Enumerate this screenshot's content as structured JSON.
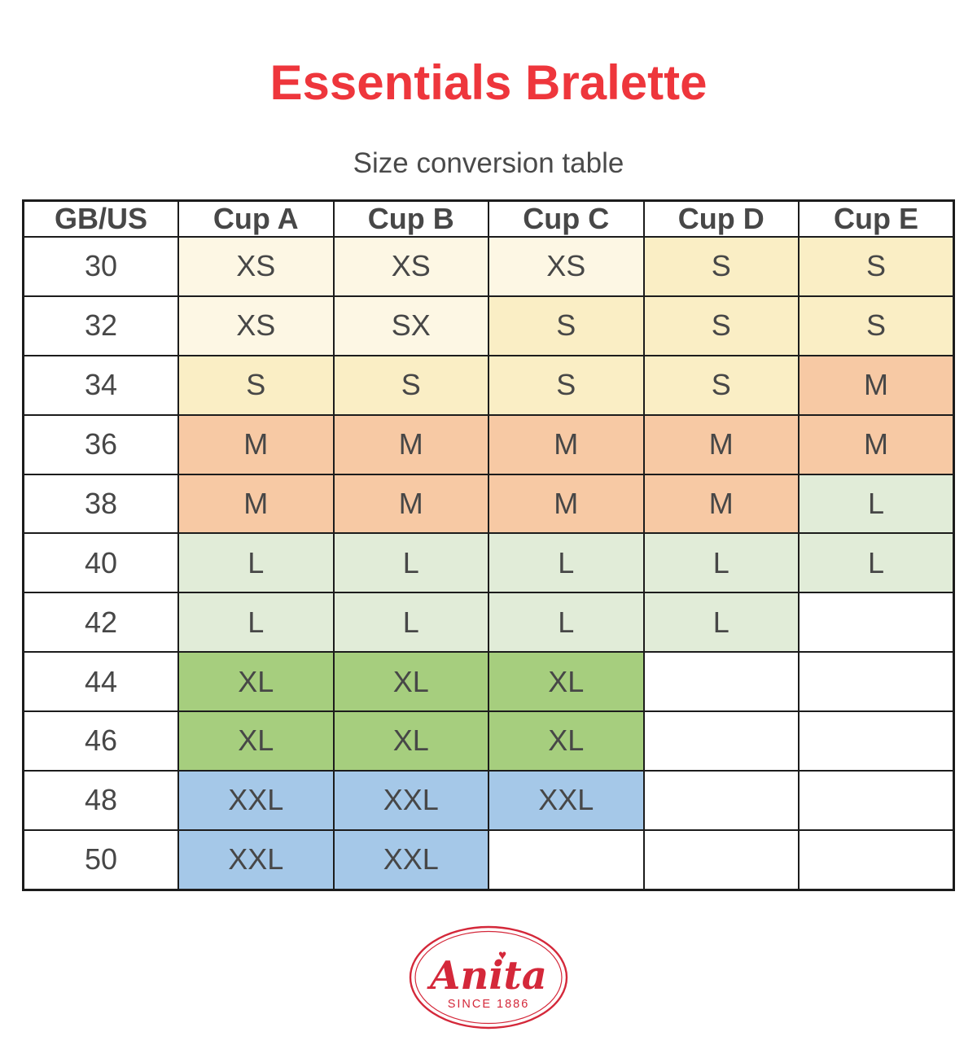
{
  "title": "Essentials Bralette",
  "title_color": "#ee363c",
  "subtitle": "Size conversion table",
  "table": {
    "headers": [
      "GB/US",
      "Cup A",
      "Cup B",
      "Cup C",
      "Cup D",
      "Cup E"
    ],
    "rows": [
      {
        "size": "30",
        "cells": [
          "XS",
          "XS",
          "XS",
          "S",
          "S"
        ]
      },
      {
        "size": "32",
        "cells": [
          "XS",
          "SX",
          "S",
          "S",
          "S"
        ]
      },
      {
        "size": "34",
        "cells": [
          "S",
          "S",
          "S",
          "S",
          "M"
        ]
      },
      {
        "size": "36",
        "cells": [
          "M",
          "M",
          "M",
          "M",
          "M"
        ]
      },
      {
        "size": "38",
        "cells": [
          "M",
          "M",
          "M",
          "M",
          "L"
        ]
      },
      {
        "size": "40",
        "cells": [
          "L",
          "L",
          "L",
          "L",
          "L"
        ]
      },
      {
        "size": "42",
        "cells": [
          "L",
          "L",
          "L",
          "L",
          ""
        ]
      },
      {
        "size": "44",
        "cells": [
          "XL",
          "XL",
          "XL",
          "",
          ""
        ]
      },
      {
        "size": "46",
        "cells": [
          "XL",
          "XL",
          "XL",
          "",
          ""
        ]
      },
      {
        "size": "48",
        "cells": [
          "XXL",
          "XXL",
          "XXL",
          "",
          ""
        ]
      },
      {
        "size": "50",
        "cells": [
          "XXL",
          "XXL",
          "",
          "",
          ""
        ]
      }
    ],
    "cell_colors": {
      "XS": "#fdf7e4",
      "SX": "#fdf7e4",
      "S": "#faeec5",
      "M": "#f7c9a4",
      "L": "#e1ecd8",
      "XL": "#a6ce7e",
      "XXL": "#a5c8e8",
      "": "#ffffff"
    }
  },
  "chart_data": {
    "type": "table",
    "title": "Essentials Bralette",
    "subtitle": "Size conversion table",
    "columns": [
      "GB/US",
      "Cup A",
      "Cup B",
      "Cup C",
      "Cup D",
      "Cup E"
    ],
    "rows": [
      [
        "30",
        "XS",
        "XS",
        "XS",
        "S",
        "S"
      ],
      [
        "32",
        "XS",
        "SX",
        "S",
        "S",
        "S"
      ],
      [
        "34",
        "S",
        "S",
        "S",
        "S",
        "M"
      ],
      [
        "36",
        "M",
        "M",
        "M",
        "M",
        "M"
      ],
      [
        "38",
        "M",
        "M",
        "M",
        "M",
        "L"
      ],
      [
        "40",
        "L",
        "L",
        "L",
        "L",
        "L"
      ],
      [
        "42",
        "L",
        "L",
        "L",
        "L",
        ""
      ],
      [
        "44",
        "XL",
        "XL",
        "XL",
        "",
        ""
      ],
      [
        "46",
        "XL",
        "XL",
        "XL",
        "",
        ""
      ],
      [
        "48",
        "XXL",
        "XXL",
        "XXL",
        "",
        ""
      ],
      [
        "50",
        "XXL",
        "XXL",
        "",
        "",
        ""
      ]
    ],
    "legend_colors": {
      "XS": "#fdf7e4",
      "S": "#faeec5",
      "M": "#f7c9a4",
      "L": "#e1ecd8",
      "XL": "#a6ce7e",
      "XXL": "#a5c8e8"
    }
  },
  "logo": {
    "brand": "Anita",
    "tagline": "SINCE 1886",
    "color": "#d4283a"
  }
}
